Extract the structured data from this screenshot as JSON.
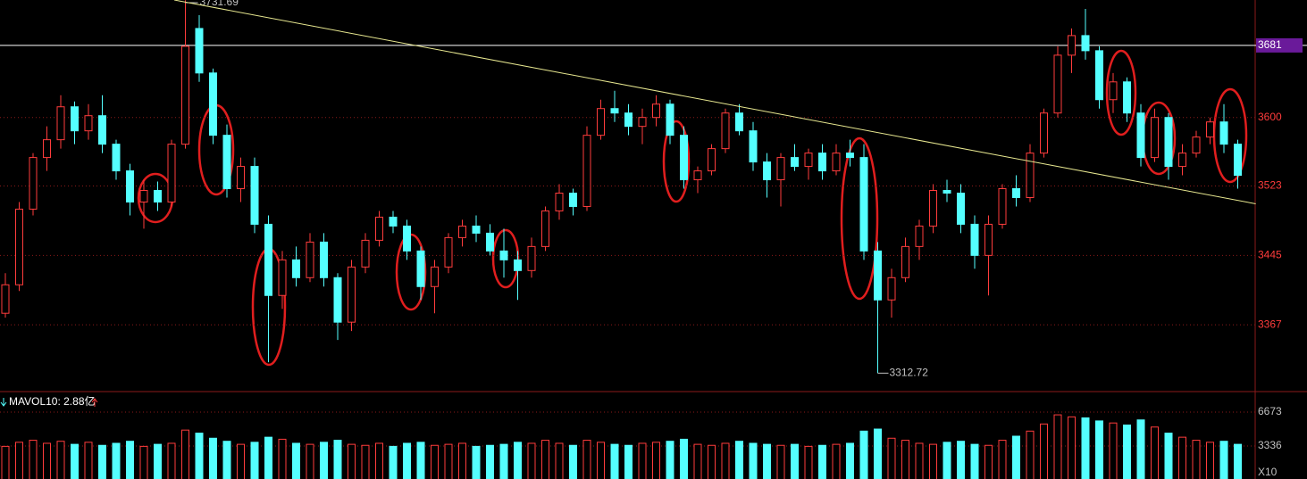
{
  "chart_data": {
    "type": "candlestick",
    "candles": {
      "open": [
        3380,
        3412,
        3497,
        3555,
        3575,
        3612,
        3585,
        3602,
        3570,
        3540,
        3505,
        3518,
        3505,
        3570,
        3700,
        3650,
        3580,
        3520,
        3545,
        3480,
        3400,
        3440,
        3420,
        3460,
        3420,
        3370,
        3432,
        3462,
        3488,
        3478,
        3450,
        3410,
        3432,
        3465,
        3478,
        3470,
        3450,
        3440,
        3428,
        3455,
        3495,
        3515,
        3500,
        3580,
        3610,
        3605,
        3590,
        3600,
        3615,
        3580,
        3530,
        3540,
        3565,
        3605,
        3585,
        3550,
        3530,
        3555,
        3545,
        3560,
        3540,
        3560,
        3555,
        3450,
        3395,
        3420,
        3455,
        3478,
        3518,
        3515,
        3480,
        3445,
        3480,
        3520,
        3510,
        3560,
        3605,
        3670,
        3692,
        3675,
        3620,
        3640,
        3605,
        3555,
        3600,
        3545,
        3560,
        3578,
        3595,
        3570
      ],
      "high": [
        3425,
        3505,
        3560,
        3590,
        3625,
        3618,
        3615,
        3625,
        3575,
        3548,
        3530,
        3528,
        3575,
        3731.69,
        3715,
        3655,
        3592,
        3555,
        3555,
        3490,
        3450,
        3455,
        3470,
        3470,
        3425,
        3440,
        3470,
        3495,
        3495,
        3485,
        3455,
        3440,
        3470,
        3485,
        3490,
        3480,
        3475,
        3450,
        3465,
        3500,
        3525,
        3520,
        3590,
        3620,
        3630,
        3615,
        3610,
        3625,
        3620,
        3590,
        3545,
        3570,
        3610,
        3615,
        3595,
        3560,
        3560,
        3570,
        3565,
        3570,
        3570,
        3575,
        3570,
        3460,
        3430,
        3465,
        3485,
        3525,
        3530,
        3525,
        3490,
        3490,
        3525,
        3535,
        3570,
        3610,
        3680,
        3700,
        3722,
        3680,
        3650,
        3645,
        3615,
        3610,
        3605,
        3570,
        3585,
        3600,
        3615,
        3575
      ],
      "low": [
        3375,
        3405,
        3490,
        3540,
        3565,
        3570,
        3575,
        3560,
        3530,
        3490,
        3475,
        3495,
        3500,
        3565,
        3640,
        3570,
        3510,
        3505,
        3470,
        3325,
        3385,
        3410,
        3415,
        3410,
        3350,
        3360,
        3425,
        3455,
        3470,
        3440,
        3395,
        3380,
        3425,
        3455,
        3460,
        3445,
        3420,
        3395,
        3420,
        3450,
        3485,
        3490,
        3495,
        3575,
        3595,
        3580,
        3570,
        3590,
        3570,
        3520,
        3515,
        3535,
        3560,
        3580,
        3540,
        3510,
        3500,
        3540,
        3530,
        3530,
        3535,
        3545,
        3440,
        3312.72,
        3375,
        3415,
        3440,
        3470,
        3505,
        3470,
        3430,
        3400,
        3475,
        3500,
        3505,
        3555,
        3600,
        3650,
        3665,
        3610,
        3605,
        3595,
        3545,
        3550,
        3530,
        3535,
        3555,
        3570,
        3560,
        3520
      ],
      "close": [
        3412,
        3497,
        3555,
        3575,
        3612,
        3585,
        3602,
        3570,
        3540,
        3505,
        3518,
        3505,
        3570,
        3680,
        3650,
        3580,
        3520,
        3545,
        3480,
        3400,
        3440,
        3420,
        3460,
        3420,
        3370,
        3432,
        3462,
        3488,
        3478,
        3450,
        3410,
        3432,
        3465,
        3478,
        3470,
        3450,
        3440,
        3428,
        3455,
        3495,
        3515,
        3500,
        3580,
        3610,
        3605,
        3590,
        3600,
        3615,
        3580,
        3530,
        3540,
        3565,
        3605,
        3585,
        3550,
        3530,
        3555,
        3545,
        3560,
        3540,
        3560,
        3555,
        3450,
        3395,
        3420,
        3455,
        3478,
        3518,
        3515,
        3480,
        3445,
        3480,
        3520,
        3510,
        3560,
        3605,
        3670,
        3692,
        3675,
        3620,
        3640,
        3605,
        3555,
        3600,
        3545,
        3560,
        3578,
        3595,
        3570,
        3535
      ]
    },
    "up_color": "#ff3c3c",
    "down_color": "#54ffff",
    "ylim": [
      3293,
      3732
    ],
    "yticks": [
      3367,
      3445,
      3523,
      3600
    ],
    "marker_line": 3681,
    "marker_color": "#6a1a9a",
    "grid": true,
    "high_label": "3731.69",
    "low_label": "3312.72",
    "trendline": {
      "x": [
        12.2,
        90.3
      ],
      "y": [
        3732,
        3503
      ],
      "color": "#e8e890"
    },
    "volume": {
      "title": "MAVOL10: 2.88亿",
      "values": [
        3300,
        3700,
        3900,
        3600,
        3800,
        3500,
        3700,
        3400,
        3600,
        3800,
        3300,
        3500,
        3600,
        4900,
        4600,
        4100,
        3800,
        3500,
        3700,
        4200,
        4000,
        3600,
        3500,
        3700,
        3900,
        3500,
        3400,
        3600,
        3300,
        3600,
        3700,
        3400,
        3500,
        3600,
        3300,
        3400,
        3500,
        3700,
        3600,
        3900,
        3600,
        3400,
        3900,
        3700,
        3500,
        3400,
        3600,
        3700,
        3800,
        4000,
        3500,
        3400,
        3600,
        3800,
        3600,
        3500,
        3400,
        3500,
        3300,
        3400,
        3500,
        3600,
        4800,
        5000,
        4100,
        3900,
        3600,
        3500,
        3700,
        3800,
        3500,
        3400,
        3900,
        4300,
        4800,
        5500,
        6400,
        6200,
        6100,
        5800,
        5600,
        5400,
        5900,
        5200,
        4600,
        4200,
        3900,
        3700,
        3800,
        3500
      ],
      "ylim": [
        0,
        8600
      ],
      "yticks": [
        3336,
        6673
      ],
      "unit_label": "X10"
    }
  }
}
